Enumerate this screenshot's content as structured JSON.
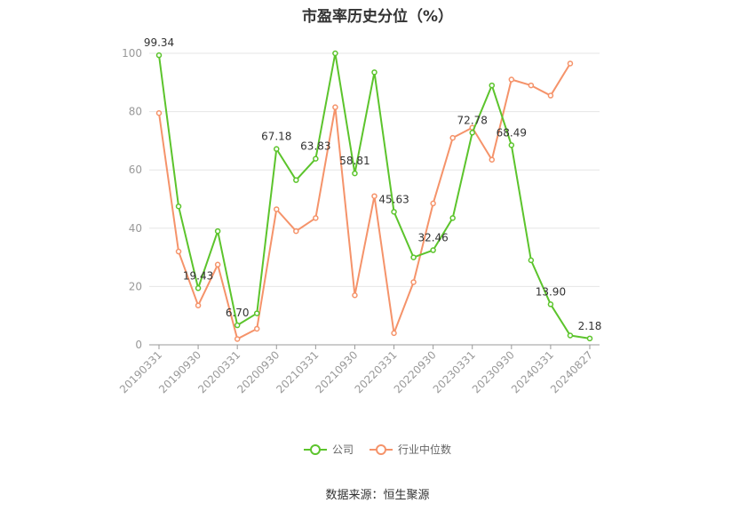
{
  "chart_data": {
    "type": "line",
    "title": "市盈率历史分位（%）",
    "x": [
      "20190331",
      "20190630",
      "20190930",
      "20191231",
      "20200331",
      "20200630",
      "20200930",
      "20201231",
      "20210331",
      "20210630",
      "20210930",
      "20211231",
      "20220331",
      "20220630",
      "20220930",
      "20221231",
      "20230331",
      "20230630",
      "20230930",
      "20231231",
      "20240331",
      "20240630",
      "20240827"
    ],
    "x_tick_labels": [
      "20190331",
      "20190930",
      "20200331",
      "20200930",
      "20210331",
      "20210930",
      "20220331",
      "20220930",
      "20230331",
      "20230930",
      "20240331",
      "20240827"
    ],
    "ylim": [
      0,
      100
    ],
    "y_ticks": [
      0,
      20,
      40,
      60,
      80,
      100
    ],
    "grid": true,
    "legend_position": "bottom",
    "series": [
      {
        "name": "公司",
        "color": "#5cc42c",
        "values": [
          99.34,
          47.5,
          19.43,
          39.0,
          6.7,
          10.8,
          67.18,
          56.5,
          63.83,
          100.0,
          58.81,
          93.5,
          45.63,
          30.0,
          32.46,
          43.5,
          72.78,
          89.0,
          68.49,
          29.0,
          13.9,
          3.2,
          2.18
        ],
        "labels": {
          "0": "99.34",
          "2": "19.43",
          "4": "6.70",
          "6": "67.18",
          "8": "63.83",
          "10": "58.81",
          "12": "45.63",
          "14": "32.46",
          "16": "72.78",
          "18": "68.49",
          "20": "13.90",
          "22": "2.18"
        }
      },
      {
        "name": "行业中位数",
        "color": "#f5936a",
        "values": [
          79.5,
          32.0,
          13.5,
          27.5,
          2.0,
          5.5,
          46.5,
          39.0,
          43.5,
          81.5,
          17.0,
          51.0,
          4.0,
          21.5,
          48.5,
          71.0,
          74.5,
          63.5,
          91.0,
          89.0,
          85.5,
          96.5,
          null
        ]
      }
    ]
  },
  "source": "数据来源：恒生聚源"
}
